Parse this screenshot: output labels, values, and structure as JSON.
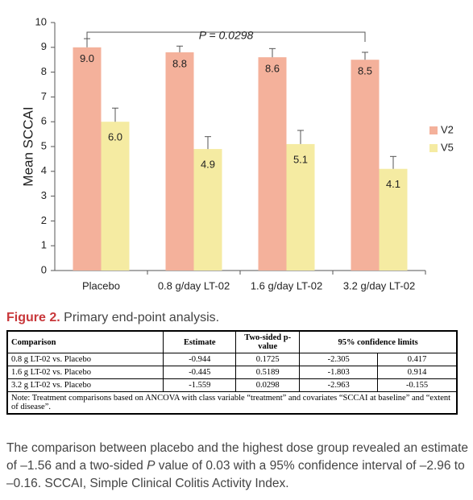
{
  "chart_data": {
    "type": "bar",
    "y_label": "Mean SCCAI",
    "categories": [
      "Placebo",
      "0.8 g/day LT-02",
      "1.6 g/day LT-02",
      "3.2 g/day LT-02"
    ],
    "series": [
      {
        "name": "V2",
        "color": "#f4b19b",
        "values": [
          9.0,
          8.8,
          8.6,
          8.5
        ],
        "value_labels": [
          "9.0",
          "8.8",
          "8.6",
          "8.5"
        ],
        "errors": [
          0.35,
          0.25,
          0.35,
          0.3
        ]
      },
      {
        "name": "V5",
        "color": "#f5eba2",
        "values": [
          6.0,
          4.9,
          5.1,
          4.1
        ],
        "value_labels": [
          "6.0",
          "4.9",
          "5.1",
          "4.1"
        ],
        "errors": [
          0.55,
          0.5,
          0.55,
          0.5
        ]
      }
    ],
    "annotation": "P = 0.0298",
    "ylim": [
      0,
      10
    ],
    "yticks": [
      0,
      1,
      2,
      3,
      4,
      5,
      6,
      7,
      8,
      9,
      10
    ],
    "legend": "right"
  },
  "caption": {
    "label": "Figure 2.",
    "text": "Primary end-point analysis."
  },
  "table": {
    "header": [
      "Comparison",
      "Estimate",
      "Two-sided p-value",
      "95% confidence limits"
    ],
    "rows": [
      [
        "0.8 g LT-02 vs. Placebo",
        "-0.944",
        "0.1725",
        "-2.305",
        "0.417"
      ],
      [
        "1.6 g LT-02 vs. Placebo",
        "-0.445",
        "0.5189",
        "-1.803",
        "0.914"
      ],
      [
        "3.2 g LT-02 vs. Placebo",
        "-1.559",
        "0.0298",
        "-2.963",
        "-0.155"
      ]
    ],
    "note": "Note: Treatment comparisons based on ANCOVA with class variable “treatment” and covariates “SCCAI at baseline” and “extent of disease”."
  },
  "paragraph": [
    "The comparison between placebo and the highest dose group revealed an estimate of –1.56 and a two-sided ",
    "P",
    " value of 0.03 with a 95% confidence interval of –2.96 to –0.16. SCCAI, Simple Clinical Colitis Activity Index."
  ]
}
